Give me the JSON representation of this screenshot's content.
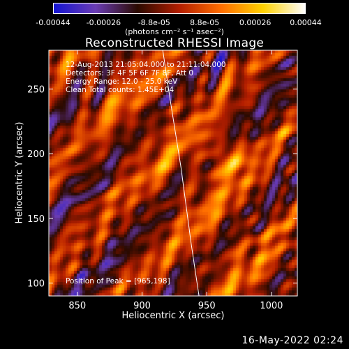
{
  "colorbar": {
    "ticks": [
      "-0.00044",
      "-0.00026",
      "-8.8e-05",
      "8.8e-05",
      "0.00026",
      "0.00044"
    ],
    "units": "(photons cm⁻² s⁻¹ asec⁻²)",
    "range": [
      -0.00044,
      0.00044
    ],
    "colors": [
      "#1414d2",
      "#6a3cb4",
      "#2a0a00",
      "#b41e00",
      "#ff6e00",
      "#ffd200",
      "#ffffff"
    ]
  },
  "chart_data": {
    "type": "heatmap",
    "title": "Reconstructed RHESSI Image",
    "xlabel": "Heliocentric X (arcsec)",
    "ylabel": "Heliocentric Y (arcsec)",
    "xlim": [
      828,
      1020
    ],
    "ylim": [
      90,
      280
    ],
    "xticks": [
      850,
      900,
      950,
      1000
    ],
    "yticks": [
      100,
      150,
      200,
      250
    ],
    "limb_curve": {
      "x": [
        916,
        922,
        930,
        938,
        944
      ],
      "y": [
        280,
        240,
        190,
        130,
        90
      ]
    },
    "annotations": {
      "time": "12-Aug-2013 21:05:04.000 to 21:11:04.000",
      "detectors": "Detectors: 3F 4F 5F 6F 7F 8F, Att 0",
      "energy": "Energy Range: 12.0 - 25.0 keV",
      "clean": "Clean     Total counts: 1.45E+04",
      "peak": "Position of Peak = [965,198]"
    },
    "peak": [
      965,
      198
    ]
  },
  "datestamp": "16-May-2022 02:24"
}
